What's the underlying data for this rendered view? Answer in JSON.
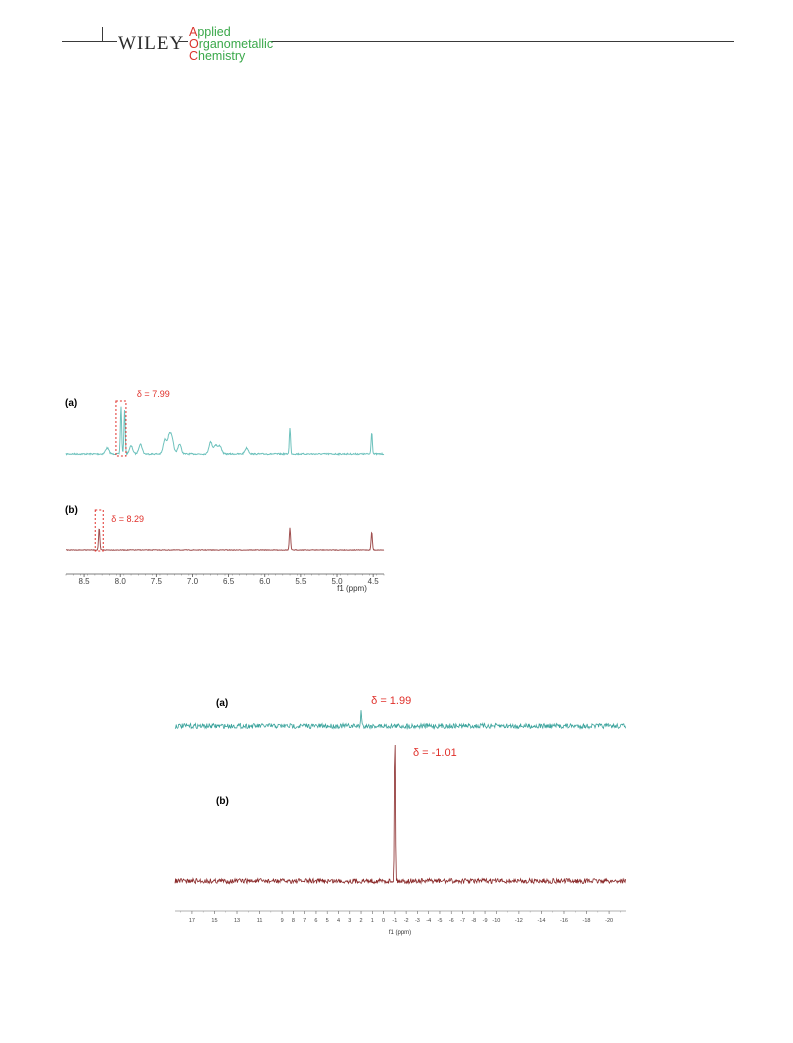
{
  "header": {
    "publisher": "WILEY",
    "journal": [
      {
        "initial": "A",
        "rest": "pplied"
      },
      {
        "initial": "O",
        "rest": "rganometallic"
      },
      {
        "initial": "C",
        "rest": "hemistry"
      }
    ]
  },
  "chart_data": [
    {
      "type": "line",
      "xlabel": "f1 (ppm)",
      "x_ticks": [
        "8.5",
        "8.0",
        "7.5",
        "7.0",
        "6.5",
        "6.0",
        "5.5",
        "5.0",
        "4.5"
      ],
      "xlim": [
        8.75,
        4.35
      ],
      "series": [
        {
          "name": "(a)",
          "color": "#6ec2bd",
          "peaks_ppm": [
            8.18,
            7.99,
            7.94,
            7.85,
            7.72,
            7.38,
            7.32,
            7.28,
            7.18,
            6.75,
            6.68,
            6.62,
            6.25,
            5.65,
            4.52
          ]
        },
        {
          "name": "(b)",
          "color": "#a05050",
          "peaks_ppm": [
            8.29,
            5.65,
            4.52
          ]
        }
      ],
      "annotations": [
        {
          "series": "(a)",
          "text": "δ = 7.99",
          "x": 7.99,
          "color": "#e0302a"
        },
        {
          "series": "(b)",
          "text": "δ = 8.29",
          "x": 8.29,
          "color": "#e0302a"
        }
      ]
    },
    {
      "type": "line",
      "xlabel": "f1 (ppm)",
      "x_ticks": [
        "17",
        "15",
        "13",
        "11",
        "9",
        "8",
        "7",
        "6",
        "5",
        "4",
        "3",
        "2",
        "1",
        "0",
        "-1",
        "-2",
        "-3",
        "-4",
        "-5",
        "-6",
        "-7",
        "-8",
        "-9",
        "-10",
        "-12",
        "-14",
        "-16",
        "-18",
        "-20"
      ],
      "xlim": [
        18.5,
        -21.5
      ],
      "series": [
        {
          "name": "(a)",
          "color": "#3aa39c",
          "peaks_ppm": [
            1.99
          ]
        },
        {
          "name": "(b)",
          "color": "#8a2a2a",
          "peaks_ppm": [
            -1.01
          ]
        }
      ],
      "annotations": [
        {
          "series": "(a)",
          "text": "δ = 1.99",
          "x": 1.99,
          "color": "#e0302a"
        },
        {
          "series": "(b)",
          "text": "δ = -1.01",
          "x": -1.01,
          "color": "#e0302a"
        }
      ]
    }
  ]
}
